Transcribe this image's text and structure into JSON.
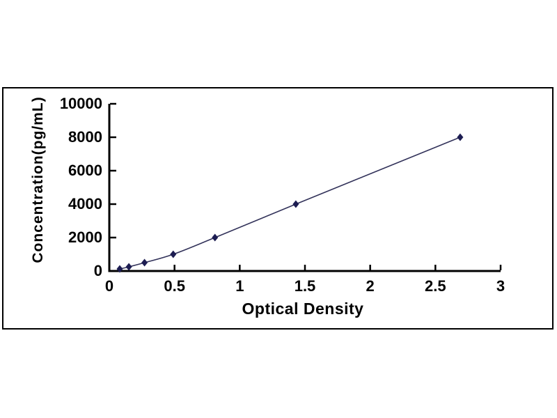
{
  "figure": {
    "kind": "elisa-standard-curve",
    "background_color": "#ffffff",
    "frame_border_color": "#000000"
  },
  "chart_data": {
    "type": "line",
    "title": "",
    "xlabel": "Optical Density",
    "ylabel": "Concentration(pg/mL)",
    "series": [
      {
        "name": "standard-curve",
        "x": [
          0.08,
          0.15,
          0.27,
          0.49,
          0.81,
          1.43,
          2.69
        ],
        "y": [
          125,
          250,
          500,
          1000,
          2000,
          4000,
          8000
        ]
      }
    ],
    "xlim": [
      0,
      3
    ],
    "ylim": [
      0,
      10000
    ],
    "x_ticks": [
      0,
      0.5,
      1,
      1.5,
      2,
      2.5,
      3
    ],
    "x_tick_labels": [
      "0",
      "0.5",
      "1",
      "1.5",
      "2",
      "2.5",
      "3"
    ],
    "y_ticks": [
      0,
      2000,
      4000,
      6000,
      8000,
      10000
    ],
    "y_tick_labels": [
      "0",
      "2000",
      "4000",
      "6000",
      "8000",
      "10000"
    ],
    "grid": false,
    "legend": "none",
    "marker": "diamond",
    "colors": {
      "line": "#32325a",
      "marker": "#1d1d52",
      "axis": "#000000",
      "text": "#000000"
    }
  }
}
